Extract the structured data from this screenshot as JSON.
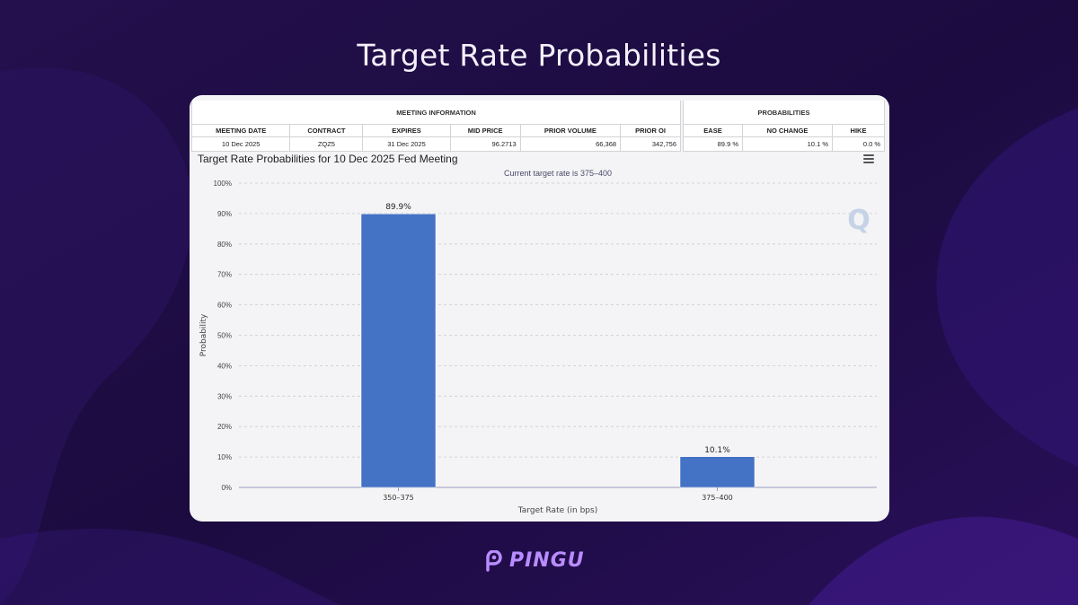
{
  "headline": "Target Rate Probabilities",
  "meeting_info": {
    "group_label": "MEETING INFORMATION",
    "headers": [
      "MEETING DATE",
      "CONTRACT",
      "EXPIRES",
      "MID PRICE",
      "PRIOR VOLUME",
      "PRIOR OI"
    ],
    "values": [
      "10 Dec 2025",
      "ZQZ5",
      "31 Dec 2025",
      "96.2713",
      "66,368",
      "342,756"
    ]
  },
  "probabilities": {
    "group_label": "PROBABILITIES",
    "headers": [
      "EASE",
      "NO CHANGE",
      "HIKE"
    ],
    "values": [
      "89.9 %",
      "10.1 %",
      "0.0 %"
    ]
  },
  "chart_data": {
    "type": "bar",
    "title": "Target Rate Probabilities for 10 Dec 2025 Fed Meeting",
    "subtitle": "Current target rate is 375–400",
    "categories": [
      "350–375",
      "375–400"
    ],
    "values": [
      89.9,
      10.1
    ],
    "data_labels": [
      "89.9%",
      "10.1%"
    ],
    "xlabel": "Target Rate (in bps)",
    "ylabel": "Probability",
    "ylim": [
      0,
      100
    ],
    "yticks": [
      0,
      10,
      20,
      30,
      40,
      50,
      60,
      70,
      80,
      90,
      100
    ],
    "ytick_labels": [
      "0%",
      "10%",
      "20%",
      "30%",
      "40%",
      "50%",
      "60%",
      "70%",
      "80%",
      "90%",
      "100%"
    ],
    "grid": true,
    "bar_color": "#4472c4"
  },
  "watermark": "Q",
  "brand": "PINGU",
  "colors": {
    "accent": "#b98cff",
    "background": "#1a0a3a"
  }
}
